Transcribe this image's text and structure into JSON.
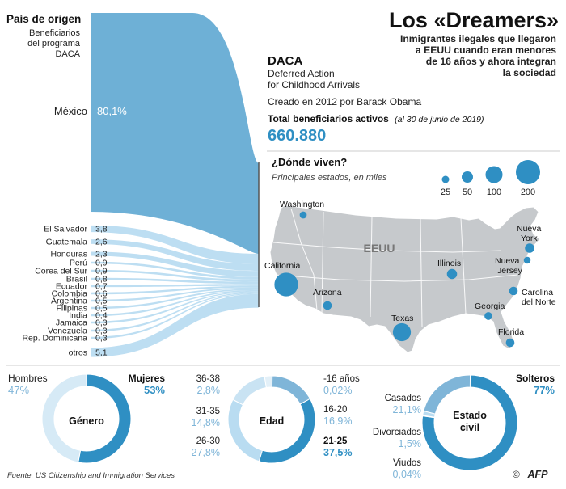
{
  "header": {
    "title": "Los «Dreamers»",
    "subtitle_lines": [
      "Inmigrantes ilegales que llegaron",
      "a EEUU cuando eran menores",
      "de 16 años y ahora integran",
      "la sociedad"
    ]
  },
  "origin": {
    "heading": "País de origen",
    "sub_lines": [
      "Beneficiarios",
      "del programa",
      "DACA"
    ],
    "mexico": {
      "label": "México",
      "value": "80,1%"
    },
    "others": [
      {
        "label": "El Salvador",
        "value": "3,8"
      },
      {
        "label": "Guatemala",
        "value": "2,6"
      },
      {
        "label": "Honduras",
        "value": "2,3"
      },
      {
        "label": "Perú",
        "value": "0,9"
      },
      {
        "label": "Corea del Sur",
        "value": "0,9"
      },
      {
        "label": "Brasil",
        "value": "0,8"
      },
      {
        "label": "Ecuador",
        "value": "0,7"
      },
      {
        "label": "Colombia",
        "value": "0,6"
      },
      {
        "label": "Argentina",
        "value": "0,5"
      },
      {
        "label": "Filipinas",
        "value": "0,5"
      },
      {
        "label": "India",
        "value": "0,4"
      },
      {
        "label": "Jamaica",
        "value": "0,3"
      },
      {
        "label": "Venezuela",
        "value": "0,3"
      },
      {
        "label": "Rep. Dominicana",
        "value": "0,3"
      },
      {
        "label": "otros",
        "value": "5,1"
      }
    ]
  },
  "daca": {
    "title": "DACA",
    "line1": "Deferred Action",
    "line2": "for Childhood Arrivals",
    "created": "Creado en 2012 por Barack Obama",
    "total_label": "Total beneficiarios activos",
    "total_note": "(al 30 de junio de 2019)",
    "total_value": "660.880"
  },
  "map": {
    "title": "¿Dónde viven?",
    "subtitle": "Principales estados, en miles",
    "country": "EEUU",
    "legend": [
      "25",
      "50",
      "100",
      "200"
    ],
    "states": [
      {
        "label": "Washington"
      },
      {
        "label": "California"
      },
      {
        "label": "Arizona"
      },
      {
        "label": "Texas"
      },
      {
        "label": "Illinois"
      },
      {
        "label": "Georgia"
      },
      {
        "label": "Florida"
      },
      {
        "label": "Nueva",
        "label2": "York"
      },
      {
        "label": "Nueva",
        "label2": "Jersey"
      },
      {
        "label": "Carolina",
        "label2": "del Norte"
      }
    ]
  },
  "chart_data": [
    {
      "type": "bar",
      "title": "País de origen",
      "categories": [
        "México",
        "El Salvador",
        "Guatemala",
        "Honduras",
        "Perú",
        "Corea del Sur",
        "Brasil",
        "Ecuador",
        "Colombia",
        "Argentina",
        "Filipinas",
        "India",
        "Jamaica",
        "Venezuela",
        "Rep. Dominicana",
        "otros"
      ],
      "values": [
        80.1,
        3.8,
        2.6,
        2.3,
        0.9,
        0.9,
        0.8,
        0.7,
        0.6,
        0.5,
        0.5,
        0.4,
        0.3,
        0.3,
        0.3,
        5.1
      ]
    },
    {
      "type": "pie",
      "title": "Género",
      "slices": [
        {
          "label": "Hombres",
          "value": 47,
          "text": "47%"
        },
        {
          "label": "Mujeres",
          "value": 53,
          "text": "53%"
        }
      ]
    },
    {
      "type": "pie",
      "title": "Edad",
      "slices": [
        {
          "label": "-16 años",
          "value": 0.02,
          "text": "0,02%"
        },
        {
          "label": "16-20",
          "value": 16.9,
          "text": "16,9%"
        },
        {
          "label": "21-25",
          "value": 37.5,
          "text": "37,5%"
        },
        {
          "label": "26-30",
          "value": 27.8,
          "text": "27,8%"
        },
        {
          "label": "31-35",
          "value": 14.8,
          "text": "14,8%"
        },
        {
          "label": "36-38",
          "value": 2.8,
          "text": "2,8%"
        }
      ]
    },
    {
      "type": "pie",
      "title": "Estado civil",
      "slices": [
        {
          "label": "Solteros",
          "value": 77,
          "text": "77%"
        },
        {
          "label": "Viudos",
          "value": 0.04,
          "text": "0,04%"
        },
        {
          "label": "Divorciados",
          "value": 1.5,
          "text": "1,5%"
        },
        {
          "label": "Casados",
          "value": 21.1,
          "text": "21,1%"
        }
      ]
    },
    {
      "type": "scatter",
      "title": "¿Dónde viven?",
      "points": [
        {
          "label": "California",
          "value": 190
        },
        {
          "label": "Texas",
          "value": 110
        },
        {
          "label": "Illinois",
          "value": 35
        },
        {
          "label": "Nueva York",
          "value": 30
        },
        {
          "label": "Florida",
          "value": 25
        },
        {
          "label": "Arizona",
          "value": 25
        },
        {
          "label": "Carolina del Norte",
          "value": 25
        },
        {
          "label": "Georgia",
          "value": 21
        },
        {
          "label": "Nueva Jersey",
          "value": 16
        },
        {
          "label": "Washington",
          "value": 17
        }
      ]
    }
  ],
  "donuts": {
    "gender": {
      "center": "Género",
      "left_label": "Hombres",
      "left_value": "47%",
      "right_label": "Mujeres",
      "right_value": "53%"
    },
    "age": {
      "center": "Edad",
      "l1_label": "36-38",
      "l1_value": "2,8%",
      "l2_label": "31-35",
      "l2_value": "14,8%",
      "l3_label": "26-30",
      "l3_value": "27,8%",
      "r1_label": "-16 años",
      "r1_value": "0,02%",
      "r2_label": "16-20",
      "r2_value": "16,9%",
      "r3_label": "21-25",
      "r3_value": "37,5%"
    },
    "civil": {
      "center1": "Estado",
      "center2": "civil",
      "solteros_label": "Solteros",
      "solteros_value": "77%",
      "casados_label": "Casados",
      "casados_value": "21,1%",
      "divorciados_label": "Divorciados",
      "divorciados_value": "1,5%",
      "viudos_label": "Viudos",
      "viudos_value": "0,04%"
    }
  },
  "footer": {
    "source": "Fuente: US Citizenship and Immigration Services",
    "credit": "AFP"
  },
  "colors": {
    "primary": "#2f8fc3",
    "sankey": "#73b3d8",
    "light": "#b9dcf1",
    "pale": "#d6eaf6",
    "map": "#c6c9cc",
    "text_blue": "#3a94c7"
  }
}
